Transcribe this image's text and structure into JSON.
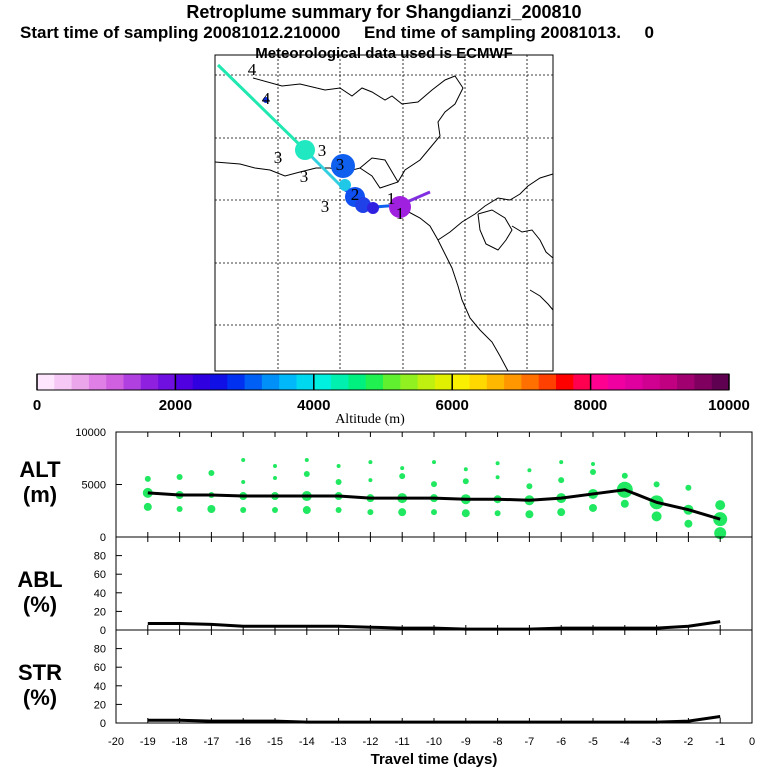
{
  "header": {
    "title": "Retroplume summary for Shangdianzi_200810",
    "sampling": "Start time of sampling 20081012.210000     End time of sampling 20081013.     0",
    "met": "Meteorological data used is ECMWF"
  },
  "colorbar": {
    "label": "Altitude (m)",
    "ticks": [
      "0",
      "2000",
      "4000",
      "6000",
      "8000",
      "10000"
    ],
    "colors": [
      "#ffe6ff",
      "#f5c8f5",
      "#eba5eb",
      "#e080e6",
      "#d060e0",
      "#b040e0",
      "#9020e0",
      "#7010e0",
      "#5000e0",
      "#3000e0",
      "#1010e6",
      "#0030f0",
      "#0060f5",
      "#0090f8",
      "#00b8fa",
      "#00d8f0",
      "#00f0e0",
      "#00f0b0",
      "#00f080",
      "#20f050",
      "#60f030",
      "#90f020",
      "#c0f010",
      "#e0f000",
      "#f8f000",
      "#ffd800",
      "#ffb800",
      "#ff9800",
      "#ff7000",
      "#ff4000",
      "#ff0000",
      "#ff0050",
      "#ff0090",
      "#f000a0",
      "#e000a0",
      "#d00090",
      "#c00080",
      "#a00070",
      "#800060",
      "#600050"
    ]
  },
  "map": {
    "plume_labels": [
      "4",
      "4",
      "3",
      "3",
      "3",
      "3",
      "3",
      "2",
      "1",
      "1"
    ]
  },
  "panels": {
    "alt_label": [
      "ALT",
      "(m)"
    ],
    "abl_label": [
      "ABL",
      "(%)"
    ],
    "str_label": [
      "STR",
      "(%)"
    ],
    "alt_ticks": [
      "10000",
      "5000",
      "0"
    ],
    "pct_ticks": [
      "80",
      "60",
      "40",
      "20",
      "0"
    ],
    "x_ticks": [
      "-20",
      "-19",
      "-18",
      "-17",
      "-16",
      "-15",
      "-14",
      "-13",
      "-12",
      "-11",
      "-10",
      "-9",
      "-8",
      "-7",
      "-6",
      "-5",
      "-4",
      "-3",
      "-2",
      "-1",
      "0"
    ],
    "xlabel": "Travel time (days)"
  },
  "chart_data": [
    {
      "type": "line",
      "name": "ALT",
      "ylabel": "ALT (m)",
      "xlabel": "Travel time (days)",
      "x": [
        -19,
        -18,
        -17,
        -16,
        -15,
        -14,
        -13,
        -12,
        -11,
        -10,
        -9,
        -8,
        -7,
        -6,
        -5,
        -4,
        -3,
        -2,
        -1
      ],
      "values": [
        4200,
        4000,
        4000,
        3900,
        3900,
        3900,
        3900,
        3700,
        3700,
        3700,
        3600,
        3600,
        3500,
        3700,
        4100,
        4500,
        3300,
        2600,
        1700
      ],
      "xlim": [
        -20,
        0
      ],
      "ylim": [
        0,
        10000
      ]
    },
    {
      "type": "line",
      "name": "ABL",
      "ylabel": "ABL (%)",
      "x": [
        -19,
        -18,
        -17,
        -16,
        -15,
        -14,
        -13,
        -12,
        -11,
        -10,
        -9,
        -8,
        -7,
        -6,
        -5,
        -4,
        -3,
        -2,
        -1
      ],
      "values": [
        7,
        7,
        6,
        4,
        4,
        4,
        4,
        3,
        2,
        2,
        1,
        1,
        1,
        2,
        2,
        2,
        2,
        4,
        9
      ],
      "xlim": [
        -20,
        0
      ],
      "ylim": [
        0,
        100
      ]
    },
    {
      "type": "line",
      "name": "STR",
      "ylabel": "STR (%)",
      "x": [
        -19,
        -18,
        -17,
        -16,
        -15,
        -14,
        -13,
        -12,
        -11,
        -10,
        -9,
        -8,
        -7,
        -6,
        -5,
        -4,
        -3,
        -2,
        -1
      ],
      "values": [
        3,
        3,
        2,
        2,
        2,
        1,
        1,
        1,
        1,
        1,
        1,
        1,
        1,
        1,
        1,
        1,
        1,
        2,
        7
      ],
      "xlim": [
        -20,
        0
      ],
      "ylim": [
        0,
        100
      ]
    }
  ]
}
